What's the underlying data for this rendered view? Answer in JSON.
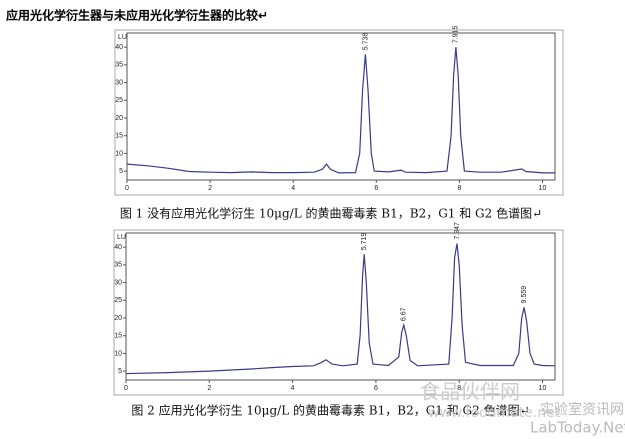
{
  "heading": "应用光化学衍生器与未应用光化学衍生器的比较↵",
  "watermark": {
    "site": "食品伙伴网",
    "url": "www.foodmate.net",
    "brand": "实验室资讯网",
    "brand_url": "LabToday.Net"
  },
  "chart_data": [
    {
      "type": "line",
      "caption": "图 1  没有应用光化学衍生 10μg/L 的黄曲霉毒素 B1，B2，G1 和 G2 色谱图↵",
      "y_label": "LU",
      "color": "#3a3a8c",
      "xlim": [
        0,
        10.3
      ],
      "xticks": [
        0,
        2,
        4,
        6,
        8,
        10
      ],
      "ylim": [
        2.5,
        44
      ],
      "yticks": [
        5,
        10,
        15,
        20,
        25,
        30,
        35,
        40
      ],
      "peaks": [
        5.738,
        7.915
      ],
      "x": [
        0,
        0.5,
        1,
        1.5,
        2,
        2.5,
        3,
        3.5,
        4,
        4.5,
        4.7,
        4.8,
        4.9,
        5.1,
        5.5,
        5.6,
        5.67,
        5.738,
        5.8,
        5.88,
        5.95,
        6.3,
        6.6,
        6.7,
        7.2,
        7.7,
        7.8,
        7.86,
        7.915,
        7.97,
        8.03,
        8.12,
        8.5,
        9,
        9.5,
        9.6,
        10,
        10.3
      ],
      "values": [
        7,
        6.5,
        5.8,
        4.9,
        4.7,
        4.6,
        4.8,
        4.6,
        4.6,
        4.7,
        5.5,
        7,
        5.5,
        4.5,
        4.6,
        10,
        28,
        38,
        28,
        10,
        5,
        4.8,
        5.3,
        4.7,
        4.6,
        5,
        15,
        32,
        40,
        32,
        15,
        5,
        4.7,
        4.7,
        5.6,
        4.9,
        4.5,
        4.5
      ]
    },
    {
      "type": "line",
      "caption": "图 2  应用光化学衍生 10μg/L 的黄曲霉毒素 B1，B2，G1 和 G2 色谱图↵",
      "y_label": "LU",
      "color": "#3a3a8c",
      "xlim": [
        0,
        10.3
      ],
      "xticks": [
        0,
        2,
        4,
        6,
        8,
        10
      ],
      "ylim": [
        2.5,
        44
      ],
      "yticks": [
        5,
        10,
        15,
        20,
        25,
        30,
        35,
        40
      ],
      "peaks": [
        5.719,
        6.67,
        7.947,
        9.559
      ],
      "x": [
        0,
        1,
        2,
        3,
        3.5,
        4,
        4.5,
        4.7,
        4.8,
        4.95,
        5.2,
        5.55,
        5.62,
        5.68,
        5.719,
        5.77,
        5.84,
        5.93,
        6.3,
        6.55,
        6.62,
        6.67,
        6.73,
        6.82,
        7,
        7.75,
        7.83,
        7.89,
        7.947,
        8,
        8.07,
        8.15,
        8.5,
        9.3,
        9.43,
        9.5,
        9.559,
        9.62,
        9.7,
        9.8,
        10,
        10.3
      ],
      "values": [
        4.3,
        4.6,
        5,
        5.6,
        6,
        6.3,
        6.5,
        7.5,
        8.2,
        7,
        6.5,
        7,
        15,
        32,
        38,
        30,
        13,
        7,
        6.6,
        9,
        16,
        18,
        15,
        8,
        6.5,
        7,
        20,
        37,
        41,
        35,
        18,
        7.5,
        6.6,
        6.6,
        10,
        20,
        23,
        19,
        10,
        7,
        6.6,
        6.5
      ]
    }
  ]
}
